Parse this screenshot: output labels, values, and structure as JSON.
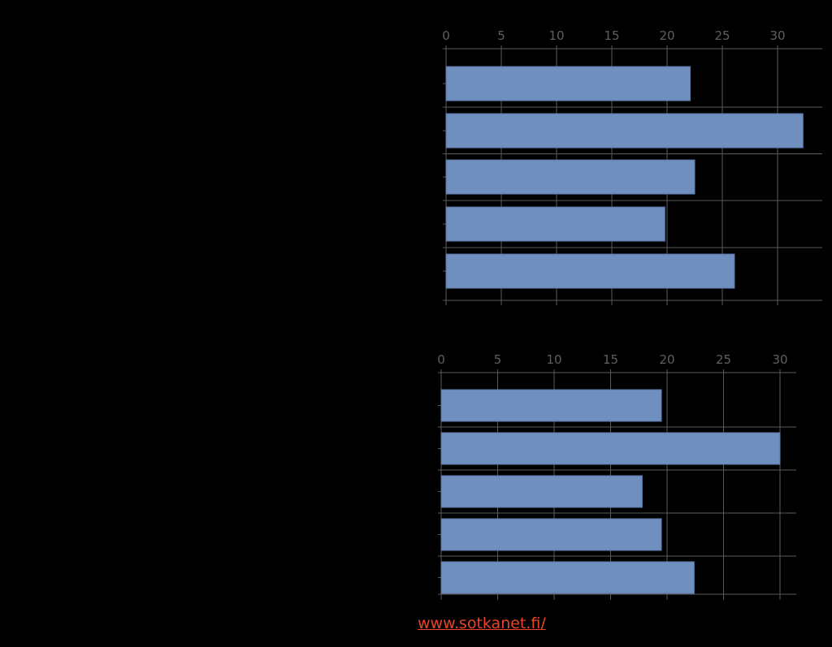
{
  "chart_data": [
    {
      "type": "bar",
      "orientation": "horizontal",
      "categories": [
        "",
        "",
        "",
        "",
        ""
      ],
      "values": [
        22.1,
        32.3,
        22.5,
        19.8,
        26.1
      ],
      "xlim": [
        0,
        33
      ],
      "ticks": [
        0,
        5,
        10,
        15,
        20,
        25,
        30
      ],
      "tick_labels": [
        "0",
        "5",
        "10",
        "15",
        "20",
        "25",
        "30"
      ],
      "x_axis_position": "top",
      "grid": true,
      "bar_color": "#6f8fbf"
    },
    {
      "type": "bar",
      "orientation": "horizontal",
      "categories": [
        "",
        "",
        "",
        "",
        ""
      ],
      "values": [
        19.5,
        30,
        17.8,
        19.5,
        22.4
      ],
      "xlim": [
        0,
        31
      ],
      "ticks": [
        0,
        5,
        10,
        15,
        20,
        25,
        30
      ],
      "tick_labels": [
        "0",
        "5",
        "10",
        "15",
        "20",
        "25",
        "30"
      ],
      "x_axis_position": "top",
      "grid": true,
      "bar_color": "#6f8fbf"
    }
  ],
  "footer": {
    "source_link": "www.sotkanet.fi/"
  },
  "colors": {
    "background": "#000000",
    "bar": "#6f8fbf",
    "gridline": "#5a5a5a",
    "tick_label": "#5f5f5f",
    "link": "#e8442a"
  }
}
